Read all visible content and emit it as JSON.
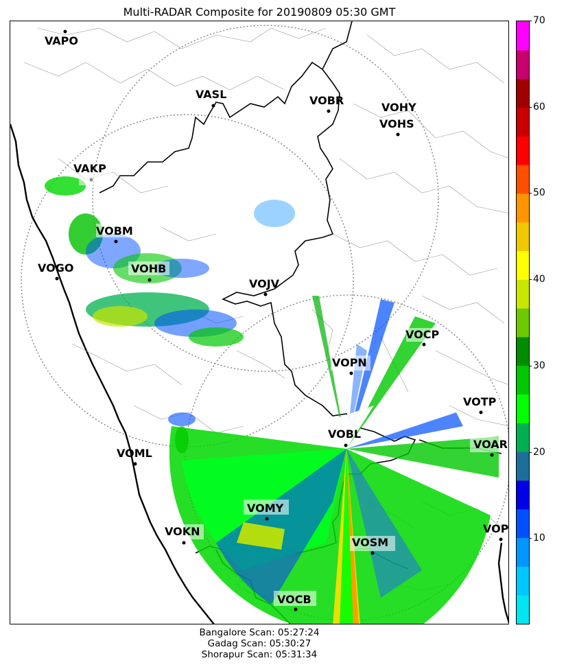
{
  "title": "Multi-RADAR Composite for 20190809 05:30 GMT",
  "stations": [
    {
      "code": "VAPO"
    },
    {
      "code": "VASL"
    },
    {
      "code": "VOBR"
    },
    {
      "code": "VOHY"
    },
    {
      "code": "VOHS"
    },
    {
      "code": "VAKP"
    },
    {
      "code": "VOBM"
    },
    {
      "code": "VOGO"
    },
    {
      "code": "VOHB"
    },
    {
      "code": "VOJV"
    },
    {
      "code": "VOCP"
    },
    {
      "code": "VOPN"
    },
    {
      "code": "VOTP"
    },
    {
      "code": "VOBL"
    },
    {
      "code": "VOAR"
    },
    {
      "code": "VOML"
    },
    {
      "code": "VOMY"
    },
    {
      "code": "VOKN"
    },
    {
      "code": "VOPC"
    },
    {
      "code": "VOSM"
    },
    {
      "code": "VOCB"
    }
  ],
  "colorbar": {
    "min": 0,
    "max": 70,
    "ticks": [
      "10",
      "20",
      "30",
      "40",
      "50",
      "60",
      "70"
    ],
    "colors": [
      "#00e5ee",
      "#00c8ff",
      "#0096ff",
      "#0050ff",
      "#0000e6",
      "#1e6e9a",
      "#00b050",
      "#00ff00",
      "#00c800",
      "#008c00",
      "#6ec800",
      "#c8e600",
      "#ffff00",
      "#f0c800",
      "#ff9600",
      "#ff5000",
      "#ff0000",
      "#c80000",
      "#a00000",
      "#c8006e",
      "#ff00ff"
    ]
  },
  "scan_times": [
    "Bangalore Scan: 05:27:24",
    "Gadag Scan: 05:30:27",
    "Shorapur Scan: 05:31:34"
  ]
}
